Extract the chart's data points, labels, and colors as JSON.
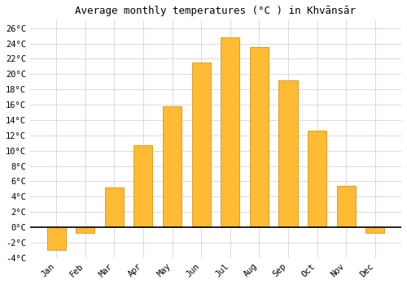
{
  "months": [
    "Jan",
    "Feb",
    "Mar",
    "Apr",
    "May",
    "Jun",
    "Jul",
    "Aug",
    "Sep",
    "Oct",
    "Nov",
    "Dec"
  ],
  "temperatures": [
    -3.0,
    -0.7,
    5.2,
    10.7,
    15.8,
    21.5,
    24.8,
    23.5,
    19.2,
    12.6,
    5.4,
    -0.7
  ],
  "bar_color": "#FFBB33",
  "bar_edge_color": "#CC8800",
  "title": "Average monthly temperatures (°C ) in Khvānsār",
  "ylim": [
    -4,
    27
  ],
  "yticks": [
    -4,
    -2,
    0,
    2,
    4,
    6,
    8,
    10,
    12,
    14,
    16,
    18,
    20,
    22,
    24,
    26
  ],
  "ytick_labels": [
    "-4°C",
    "-2°C",
    "0°C",
    "2°C",
    "4°C",
    "6°C",
    "8°C",
    "10°C",
    "12°C",
    "14°C",
    "16°C",
    "18°C",
    "20°C",
    "22°C",
    "24°C",
    "26°C"
  ],
  "background_color": "#FFFFFF",
  "grid_color": "#CCCCCC",
  "title_fontsize": 9,
  "tick_fontsize": 7.5,
  "bar_width": 0.65
}
